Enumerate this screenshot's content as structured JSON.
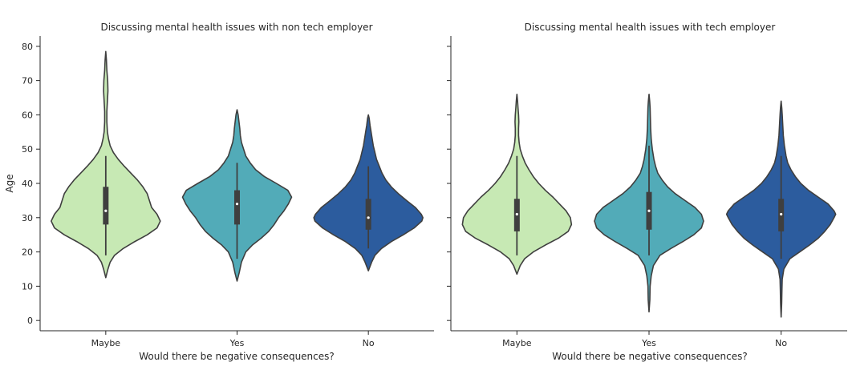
{
  "chart_data": [
    {
      "type": "violin",
      "title": "Discussing mental health issues with non tech employer",
      "xlabel": "Would there be negative consequences?",
      "ylabel": "Age",
      "ylim": [
        -3,
        83
      ],
      "yticks": [
        0,
        10,
        20,
        30,
        40,
        50,
        60,
        70,
        80
      ],
      "grid": false,
      "categories": [
        "Maybe",
        "Yes",
        "No"
      ],
      "colors": [
        "#c7e9b4",
        "#52abb8",
        "#2c5c9e"
      ],
      "series": [
        {
          "category": "Maybe",
          "min": 19,
          "q1": 28,
          "median": 32,
          "q3": 39,
          "max": 48,
          "kde_min": 12.5,
          "kde_max": 78.5,
          "density": [
            [
              12.5,
              0
            ],
            [
              15,
              0.04
            ],
            [
              17,
              0.08
            ],
            [
              19,
              0.16
            ],
            [
              21,
              0.32
            ],
            [
              23,
              0.53
            ],
            [
              25,
              0.76
            ],
            [
              27,
              0.94
            ],
            [
              29,
              1.0
            ],
            [
              31,
              0.94
            ],
            [
              33,
              0.84
            ],
            [
              35,
              0.8
            ],
            [
              37,
              0.76
            ],
            [
              39,
              0.68
            ],
            [
              41,
              0.58
            ],
            [
              43,
              0.46
            ],
            [
              45,
              0.34
            ],
            [
              47,
              0.23
            ],
            [
              49,
              0.14
            ],
            [
              51,
              0.08
            ],
            [
              53,
              0.05
            ],
            [
              55,
              0.03
            ],
            [
              58,
              0.02
            ],
            [
              61,
              0.02
            ],
            [
              64,
              0.03
            ],
            [
              67,
              0.04
            ],
            [
              70,
              0.035
            ],
            [
              73,
              0.02
            ],
            [
              76,
              0.012
            ],
            [
              78.5,
              0
            ]
          ]
        },
        {
          "category": "Yes",
          "min": 18,
          "q1": 28,
          "median": 34,
          "q3": 38,
          "max": 46,
          "kde_min": 11.5,
          "kde_max": 61.5,
          "density": [
            [
              11.5,
              0
            ],
            [
              14,
              0.04
            ],
            [
              17,
              0.08
            ],
            [
              20,
              0.16
            ],
            [
              22,
              0.28
            ],
            [
              24,
              0.44
            ],
            [
              26,
              0.58
            ],
            [
              28,
              0.68
            ],
            [
              30,
              0.76
            ],
            [
              32,
              0.86
            ],
            [
              34,
              0.94
            ],
            [
              36,
              1.0
            ],
            [
              38,
              0.93
            ],
            [
              40,
              0.72
            ],
            [
              42,
              0.5
            ],
            [
              44,
              0.34
            ],
            [
              46,
              0.24
            ],
            [
              48,
              0.16
            ],
            [
              50,
              0.12
            ],
            [
              52,
              0.08
            ],
            [
              54,
              0.06
            ],
            [
              56,
              0.05
            ],
            [
              58,
              0.035
            ],
            [
              60,
              0.02
            ],
            [
              61.5,
              0
            ]
          ]
        },
        {
          "category": "No",
          "min": 21,
          "q1": 26.5,
          "median": 30,
          "q3": 35.5,
          "max": 45,
          "kde_min": 14.5,
          "kde_max": 60,
          "density": [
            [
              14.5,
              0
            ],
            [
              17,
              0.06
            ],
            [
              19,
              0.12
            ],
            [
              21,
              0.24
            ],
            [
              23,
              0.42
            ],
            [
              25,
              0.64
            ],
            [
              27,
              0.84
            ],
            [
              29,
              0.98
            ],
            [
              30,
              1.0
            ],
            [
              31,
              0.97
            ],
            [
              33,
              0.86
            ],
            [
              35,
              0.7
            ],
            [
              37,
              0.55
            ],
            [
              39,
              0.42
            ],
            [
              41,
              0.32
            ],
            [
              43,
              0.25
            ],
            [
              45,
              0.2
            ],
            [
              47,
              0.15
            ],
            [
              49,
              0.12
            ],
            [
              51,
              0.09
            ],
            [
              53,
              0.07
            ],
            [
              55,
              0.05
            ],
            [
              57,
              0.03
            ],
            [
              59,
              0.015
            ],
            [
              60,
              0
            ]
          ]
        }
      ]
    },
    {
      "type": "violin",
      "title": "Discussing mental health issues with tech employer",
      "xlabel": "Would there be negative consequences?",
      "ylabel": "",
      "ylim": [
        -3,
        83
      ],
      "grid": false,
      "categories": [
        "Maybe",
        "Yes",
        "No"
      ],
      "colors": [
        "#c7e9b4",
        "#52abb8",
        "#2c5c9e"
      ],
      "series": [
        {
          "category": "Maybe",
          "min": 19,
          "q1": 26,
          "median": 31,
          "q3": 35.5,
          "max": 48,
          "kde_min": 13.5,
          "kde_max": 66,
          "density": [
            [
              13.5,
              0
            ],
            [
              16,
              0.06
            ],
            [
              18,
              0.14
            ],
            [
              20,
              0.3
            ],
            [
              22,
              0.52
            ],
            [
              24,
              0.76
            ],
            [
              26,
              0.94
            ],
            [
              28,
              1.0
            ],
            [
              30,
              0.98
            ],
            [
              32,
              0.9
            ],
            [
              34,
              0.78
            ],
            [
              36,
              0.66
            ],
            [
              38,
              0.52
            ],
            [
              40,
              0.4
            ],
            [
              42,
              0.3
            ],
            [
              44,
              0.22
            ],
            [
              46,
              0.15
            ],
            [
              48,
              0.1
            ],
            [
              50,
              0.06
            ],
            [
              52,
              0.04
            ],
            [
              54,
              0.03
            ],
            [
              56,
              0.03
            ],
            [
              58,
              0.035
            ],
            [
              60,
              0.03
            ],
            [
              62,
              0.02
            ],
            [
              64,
              0.012
            ],
            [
              66,
              0
            ]
          ]
        },
        {
          "category": "Yes",
          "min": 19,
          "q1": 26.5,
          "median": 32,
          "q3": 37.5,
          "max": 51,
          "kde_min": 2.5,
          "kde_max": 66,
          "density": [
            [
              2.5,
              0
            ],
            [
              6,
              0.015
            ],
            [
              10,
              0.02
            ],
            [
              13,
              0.04
            ],
            [
              16,
              0.08
            ],
            [
              19,
              0.2
            ],
            [
              21,
              0.4
            ],
            [
              23,
              0.62
            ],
            [
              25,
              0.82
            ],
            [
              27,
              0.96
            ],
            [
              29,
              1.0
            ],
            [
              31,
              0.96
            ],
            [
              33,
              0.84
            ],
            [
              35,
              0.66
            ],
            [
              37,
              0.48
            ],
            [
              39,
              0.34
            ],
            [
              41,
              0.24
            ],
            [
              43,
              0.16
            ],
            [
              45,
              0.12
            ],
            [
              47,
              0.09
            ],
            [
              50,
              0.06
            ],
            [
              53,
              0.04
            ],
            [
              56,
              0.03
            ],
            [
              59,
              0.025
            ],
            [
              62,
              0.02
            ],
            [
              64,
              0.012
            ],
            [
              66,
              0
            ]
          ]
        },
        {
          "category": "No",
          "min": 18,
          "q1": 26,
          "median": 31,
          "q3": 35.5,
          "max": 48,
          "kde_min": 1,
          "kde_max": 64,
          "density": [
            [
              1,
              0
            ],
            [
              5,
              0.01
            ],
            [
              9,
              0.015
            ],
            [
              12,
              0.02
            ],
            [
              15,
              0.05
            ],
            [
              18,
              0.16
            ],
            [
              20,
              0.34
            ],
            [
              22,
              0.52
            ],
            [
              24,
              0.68
            ],
            [
              26,
              0.8
            ],
            [
              28,
              0.9
            ],
            [
              30,
              0.97
            ],
            [
              31,
              1.0
            ],
            [
              32,
              0.97
            ],
            [
              34,
              0.86
            ],
            [
              36,
              0.68
            ],
            [
              38,
              0.5
            ],
            [
              40,
              0.36
            ],
            [
              42,
              0.26
            ],
            [
              44,
              0.18
            ],
            [
              46,
              0.12
            ],
            [
              48,
              0.09
            ],
            [
              51,
              0.06
            ],
            [
              54,
              0.04
            ],
            [
              57,
              0.03
            ],
            [
              60,
              0.02
            ],
            [
              62,
              0.012
            ],
            [
              64,
              0
            ]
          ]
        }
      ]
    }
  ]
}
